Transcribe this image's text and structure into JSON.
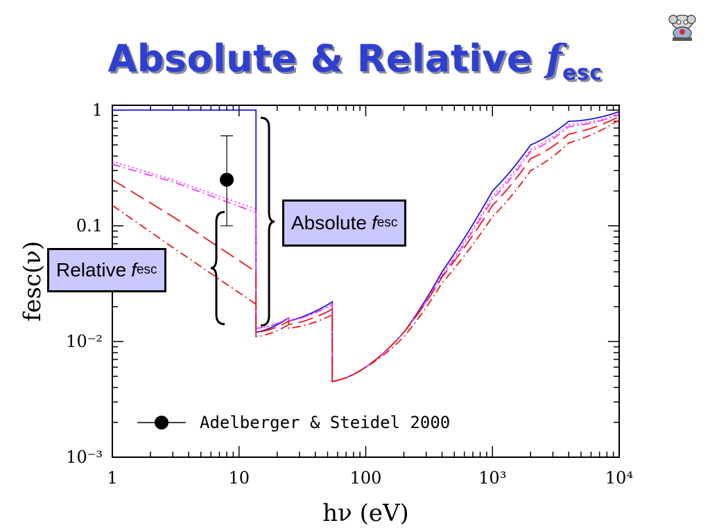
{
  "slide": {
    "title_main": "Absolute & Relative",
    "title_f": "f",
    "title_sub": "esc"
  },
  "callouts": {
    "absolute": {
      "text": "Absolute",
      "f": "f",
      "sub": "esc"
    },
    "relative": {
      "text": "Relative",
      "f": "f",
      "sub": "esc"
    }
  },
  "logo": {
    "icon": "cartoon-mascot-logo"
  },
  "chart_data": {
    "type": "line",
    "title": "",
    "xlabel": "hν  (eV)",
    "ylabel": "fesc(ν)",
    "xscale": "log",
    "yscale": "log",
    "xlim": [
      1,
      10000
    ],
    "ylim": [
      0.001,
      1.1
    ],
    "xticks": [
      "1",
      "10",
      "100",
      "10³",
      "10⁴"
    ],
    "yticks": [
      "10⁻³",
      "10⁻²",
      "0.1",
      "1"
    ],
    "legend_position": "bottom-left",
    "legend": [
      {
        "label": "Adelberger & Steidel 2000",
        "marker": "filled-circle-with-line"
      }
    ],
    "series": [
      {
        "color": "#1a1ad6",
        "style": "solid",
        "points": [
          [
            1,
            1.0
          ],
          [
            13.6,
            1.0
          ],
          [
            13.6,
            0.012
          ],
          [
            24.6,
            0.016
          ],
          [
            24.6,
            0.015
          ],
          [
            54.4,
            0.022
          ],
          [
            54.4,
            0.0045
          ],
          [
            100,
            0.006
          ],
          [
            200,
            0.012
          ],
          [
            400,
            0.04
          ],
          [
            1000,
            0.2
          ],
          [
            2000,
            0.5
          ],
          [
            4000,
            0.8
          ],
          [
            10000,
            0.97
          ]
        ]
      },
      {
        "color": "#ff30ff",
        "style": "dotted",
        "points": [
          [
            1,
            0.36
          ],
          [
            3,
            0.25
          ],
          [
            13.6,
            0.14
          ],
          [
            13.6,
            0.013
          ],
          [
            24.6,
            0.016
          ],
          [
            24.6,
            0.015
          ],
          [
            54.4,
            0.021
          ],
          [
            54.4,
            0.0045
          ],
          [
            100,
            0.006
          ],
          [
            200,
            0.012
          ],
          [
            400,
            0.038
          ],
          [
            1000,
            0.18
          ],
          [
            2000,
            0.46
          ],
          [
            4000,
            0.75
          ],
          [
            10000,
            0.93
          ]
        ]
      },
      {
        "color": "#ff30ff",
        "style": "dash-dot",
        "points": [
          [
            1,
            0.34
          ],
          [
            3,
            0.24
          ],
          [
            13.6,
            0.13
          ],
          [
            13.6,
            0.013
          ],
          [
            24.6,
            0.016
          ],
          [
            24.6,
            0.015
          ],
          [
            54.4,
            0.021
          ],
          [
            54.4,
            0.0045
          ],
          [
            100,
            0.006
          ],
          [
            200,
            0.012
          ],
          [
            400,
            0.037
          ],
          [
            1000,
            0.17
          ],
          [
            2000,
            0.44
          ],
          [
            4000,
            0.72
          ],
          [
            10000,
            0.92
          ]
        ]
      },
      {
        "color": "#e81818",
        "style": "long-dash",
        "points": [
          [
            1,
            0.25
          ],
          [
            3,
            0.12
          ],
          [
            13.6,
            0.04
          ],
          [
            13.6,
            0.012
          ],
          [
            24.6,
            0.015
          ],
          [
            24.6,
            0.014
          ],
          [
            54.4,
            0.019
          ],
          [
            54.4,
            0.0045
          ],
          [
            100,
            0.006
          ],
          [
            200,
            0.012
          ],
          [
            400,
            0.036
          ],
          [
            1000,
            0.15
          ],
          [
            2000,
            0.38
          ],
          [
            4000,
            0.62
          ],
          [
            10000,
            0.88
          ]
        ]
      },
      {
        "color": "#e81818",
        "style": "dash-dot",
        "points": [
          [
            1,
            0.15
          ],
          [
            3,
            0.065
          ],
          [
            13.6,
            0.021
          ],
          [
            13.6,
            0.011
          ],
          [
            24.6,
            0.014
          ],
          [
            24.6,
            0.013
          ],
          [
            54.4,
            0.017
          ],
          [
            54.4,
            0.0045
          ],
          [
            100,
            0.006
          ],
          [
            200,
            0.011
          ],
          [
            400,
            0.032
          ],
          [
            1000,
            0.12
          ],
          [
            2000,
            0.3
          ],
          [
            4000,
            0.52
          ],
          [
            10000,
            0.82
          ]
        ]
      }
    ],
    "datapoint": {
      "x": 8,
      "y": 0.25,
      "yerr_low": 0.1,
      "yerr_high": 0.6,
      "label": "Adelberger & Steidel 2000"
    },
    "annotations": [
      "Absolute fesc",
      "Relative fesc"
    ]
  }
}
